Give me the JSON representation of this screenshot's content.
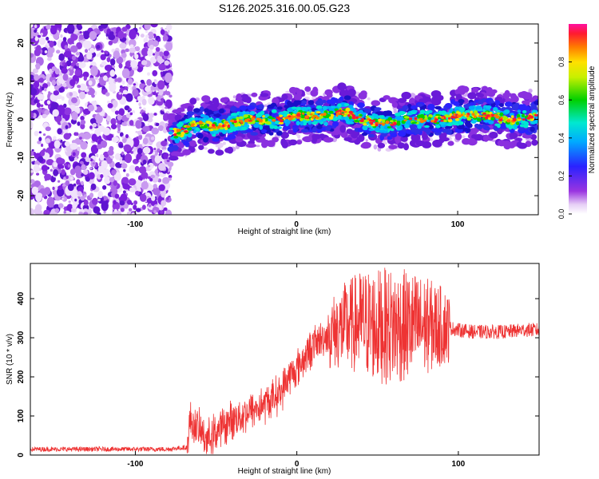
{
  "figure_title": "S126.2025.316.00.05.G23",
  "chart_data": [
    {
      "type": "heatmap",
      "title": "S126.2025.316.00.05.G23",
      "xlabel": "Height of straight line (km)",
      "ylabel": "Frequency (Hz)",
      "xlim": [
        -165,
        150
      ],
      "ylim": [
        -25,
        25
      ],
      "x_ticks": [
        -100,
        0,
        100
      ],
      "y_ticks": [
        -20,
        -10,
        0,
        10,
        20
      ],
      "noise_region_x": [
        -165,
        -78
      ],
      "ridge": {
        "x": [
          -78,
          -70,
          -60,
          -50,
          -40,
          -30,
          -20,
          -10,
          0,
          10,
          20,
          30,
          40,
          50,
          60,
          70,
          80,
          90,
          100,
          110,
          120,
          130,
          140,
          150
        ],
        "frequency": [
          -4,
          -3,
          -1,
          -2,
          -1,
          0,
          0,
          0,
          1,
          1,
          1,
          2,
          0,
          -1,
          -1,
          0,
          0,
          0,
          1,
          1,
          1,
          0,
          0,
          1
        ]
      },
      "colorbar": {
        "label": "Normalized spectral amplitude",
        "range": [
          0.0,
          1.0
        ],
        "ticks": [
          "0.0",
          "0.2",
          "0.4",
          "0.6",
          "0.8"
        ]
      }
    },
    {
      "type": "line",
      "xlabel": "Height of straight line (km)",
      "ylabel": "SNR (10 * v/v)",
      "xlim": [
        -165,
        150
      ],
      "ylim": [
        0,
        490
      ],
      "x_ticks": [
        -100,
        0,
        100
      ],
      "y_ticks": [
        0,
        100,
        200,
        300,
        400
      ],
      "series": [
        {
          "name": "SNR",
          "color": "#ee3333",
          "x": [
            -165,
            -140,
            -110,
            -80,
            -68,
            -66,
            -62,
            -55,
            -50,
            -40,
            -30,
            -20,
            -10,
            -5,
            0,
            5,
            10,
            20,
            30,
            40,
            50,
            60,
            70,
            80,
            90,
            100,
            110,
            120,
            130,
            140,
            150
          ],
          "values": [
            15,
            15,
            15,
            15,
            20,
            90,
            70,
            40,
            60,
            90,
            110,
            130,
            160,
            200,
            220,
            250,
            280,
            310,
            330,
            340,
            330,
            330,
            330,
            330,
            330,
            320,
            315,
            315,
            315,
            320,
            320
          ]
        }
      ]
    }
  ]
}
